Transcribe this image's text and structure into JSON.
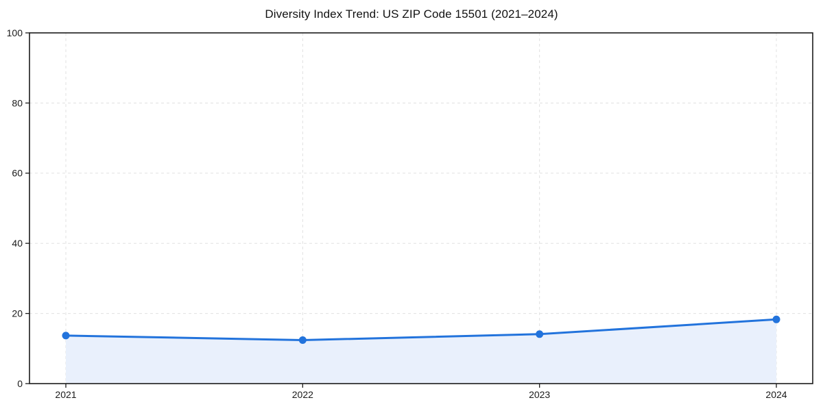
{
  "chart_data": {
    "type": "area",
    "title": "Diversity Index Trend: US ZIP Code 15501 (2021–2024)",
    "categories": [
      "2021",
      "2022",
      "2023",
      "2024"
    ],
    "series": [
      {
        "name": "Diversity Index",
        "values": [
          13.7,
          12.4,
          14.1,
          18.3
        ]
      }
    ],
    "xlabel": "",
    "ylabel": "",
    "ylim": [
      0,
      100
    ],
    "yticks": [
      0,
      20,
      40,
      60,
      80,
      100
    ],
    "grid": "dashed-both-axes",
    "legend_position": "none",
    "colors": {
      "line": "#2273dc",
      "marker": "#2273dc",
      "fill": "#e9f0fc",
      "grid": "#e0e0e0",
      "spine": "#1a1a1a",
      "tick_text": "#1a1a1a",
      "background": "#ffffff"
    }
  }
}
